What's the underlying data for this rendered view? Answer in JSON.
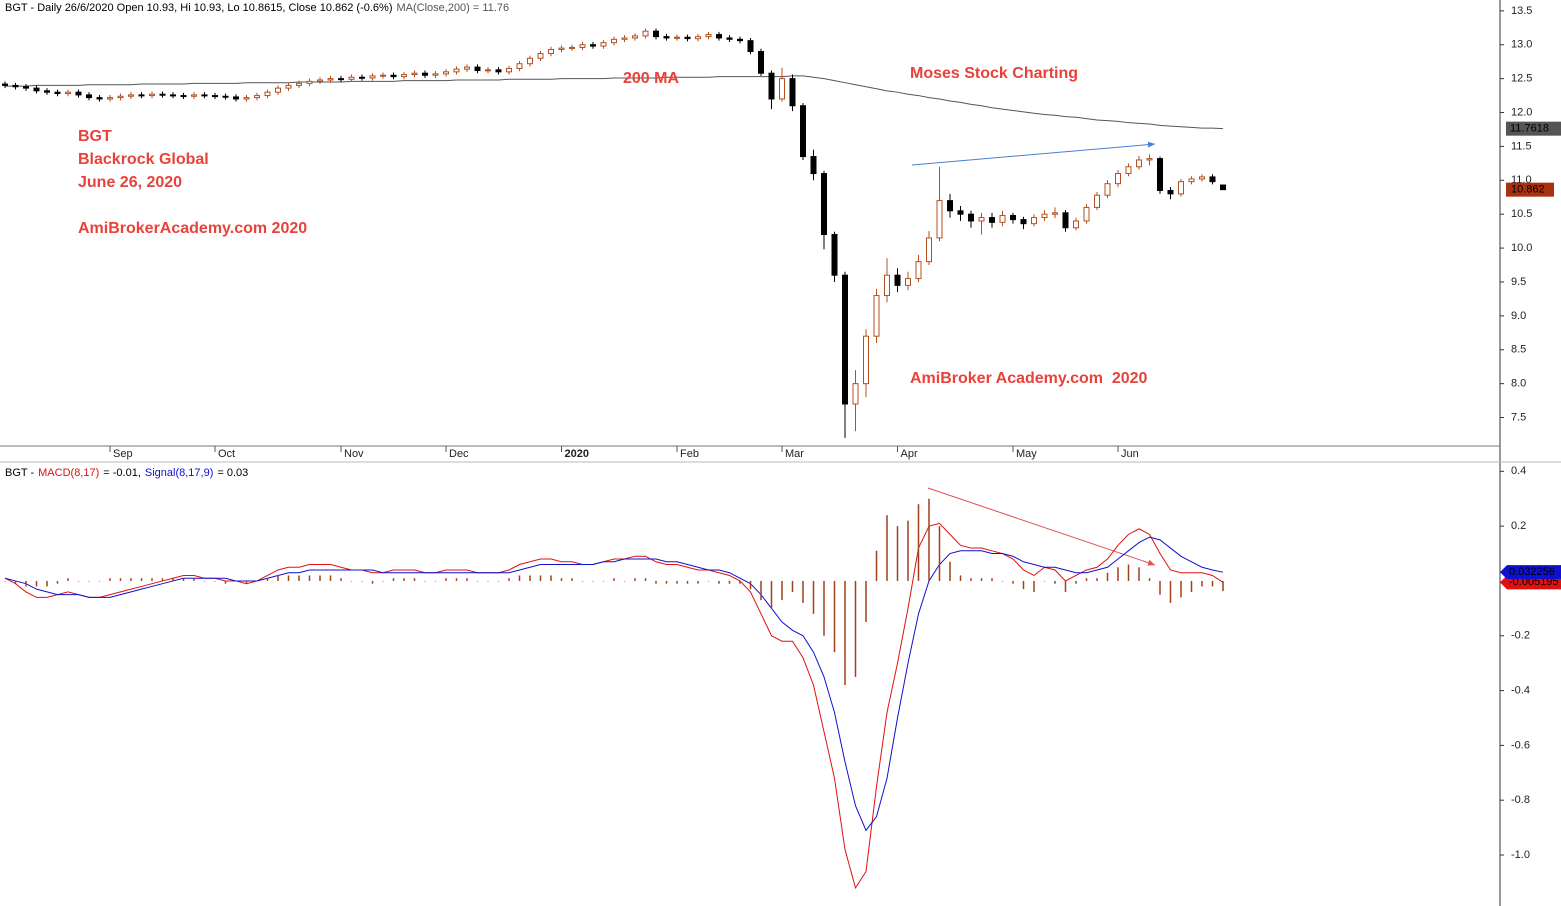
{
  "chart_data": [
    {
      "type": "candlestick",
      "title": "BGT - Daily 26/6/2020 Open 10.93, Hi 10.93, Lo 10.8615, Close 10.862 (-0.6%)",
      "annotations": [
        "BGT",
        "Blackrock Global",
        "June 26, 2020",
        "AmiBrokerAcademy.com 2020",
        "200 MA",
        "Moses Stock Charting",
        "AmiBroker Academy.com  2020"
      ],
      "categories": [
        null,
        null,
        null,
        null,
        null,
        null,
        null,
        null,
        null,
        null,
        "Sep",
        null,
        null,
        null,
        null,
        null,
        null,
        null,
        null,
        null,
        "Oct",
        null,
        null,
        null,
        null,
        null,
        null,
        null,
        null,
        null,
        null,
        null,
        "Nov",
        null,
        null,
        null,
        null,
        null,
        null,
        null,
        null,
        null,
        "Dec",
        null,
        null,
        null,
        null,
        null,
        null,
        null,
        null,
        null,
        null,
        "2020",
        null,
        null,
        null,
        null,
        null,
        null,
        null,
        null,
        null,
        null,
        "Feb",
        null,
        null,
        null,
        null,
        null,
        null,
        null,
        null,
        null,
        "Mar",
        null,
        null,
        null,
        null,
        null,
        null,
        null,
        null,
        null,
        null,
        "Apr",
        null,
        null,
        null,
        null,
        null,
        null,
        null,
        null,
        null,
        null,
        "May",
        null,
        null,
        null,
        null,
        null,
        null,
        null,
        null,
        null,
        "Jun",
        null,
        null,
        null,
        null,
        null,
        null,
        null,
        null,
        null,
        null
      ],
      "open": [
        12.42,
        12.4,
        12.38,
        12.36,
        12.32,
        12.3,
        12.28,
        12.3,
        12.26,
        12.22,
        12.2,
        12.22,
        12.24,
        12.26,
        12.25,
        12.27,
        12.26,
        12.25,
        12.24,
        12.26,
        12.25,
        12.24,
        12.23,
        12.2,
        12.22,
        12.25,
        12.3,
        12.36,
        12.4,
        12.43,
        12.46,
        12.48,
        12.5,
        12.49,
        12.52,
        12.51,
        12.54,
        12.55,
        12.53,
        12.56,
        12.58,
        12.55,
        12.57,
        12.6,
        12.64,
        12.67,
        12.62,
        12.63,
        12.6,
        12.65,
        12.72,
        12.8,
        12.87,
        12.93,
        12.95,
        12.96,
        13.0,
        12.98,
        13.03,
        13.08,
        13.1,
        13.13,
        13.2,
        13.12,
        13.1,
        13.11,
        13.09,
        13.12,
        13.15,
        13.1,
        13.08,
        13.06,
        12.9,
        12.58,
        12.2,
        12.5,
        12.1,
        11.35,
        11.1,
        10.2,
        9.6,
        7.7,
        8.0,
        8.7,
        9.3,
        9.6,
        9.45,
        9.55,
        9.8,
        10.15,
        10.7,
        10.55,
        10.5,
        10.4,
        10.45,
        10.38,
        10.48,
        10.42,
        10.36,
        10.45,
        10.5,
        10.52,
        10.3,
        10.4,
        10.6,
        10.78,
        10.95,
        11.1,
        11.2,
        11.3,
        11.32,
        10.85,
        10.8,
        10.98,
        11.02,
        11.05,
        10.93
      ],
      "high": [
        12.46,
        12.44,
        12.42,
        12.4,
        12.36,
        12.34,
        12.34,
        12.34,
        12.3,
        12.26,
        12.26,
        12.28,
        12.3,
        12.3,
        12.31,
        12.31,
        12.3,
        12.29,
        12.3,
        12.3,
        12.29,
        12.28,
        12.27,
        12.26,
        12.29,
        12.34,
        12.4,
        12.44,
        12.47,
        12.5,
        12.52,
        12.54,
        12.54,
        12.56,
        12.56,
        12.58,
        12.59,
        12.59,
        12.6,
        12.62,
        12.62,
        12.61,
        12.64,
        12.68,
        12.71,
        12.71,
        12.67,
        12.67,
        12.69,
        12.76,
        12.84,
        12.91,
        12.97,
        12.99,
        13.0,
        13.04,
        13.04,
        13.07,
        13.12,
        13.14,
        13.17,
        13.24,
        13.24,
        13.16,
        13.15,
        13.15,
        13.16,
        13.19,
        13.19,
        13.14,
        13.12,
        13.1,
        12.94,
        12.62,
        12.66,
        12.56,
        12.14,
        11.45,
        11.14,
        10.24,
        9.65,
        8.2,
        8.8,
        9.4,
        9.85,
        9.7,
        9.65,
        9.9,
        10.25,
        11.2,
        10.8,
        10.62,
        10.55,
        10.52,
        10.52,
        10.55,
        10.52,
        10.46,
        10.5,
        10.56,
        10.6,
        10.56,
        10.45,
        10.65,
        10.83,
        11.0,
        11.15,
        11.25,
        11.36,
        11.38,
        11.35,
        10.9,
        11.02,
        11.06,
        11.09,
        11.09,
        10.93
      ],
      "low": [
        12.36,
        12.34,
        12.32,
        12.28,
        12.26,
        12.24,
        12.24,
        12.22,
        12.18,
        12.16,
        12.16,
        12.18,
        12.2,
        12.21,
        12.21,
        12.22,
        12.21,
        12.2,
        12.2,
        12.21,
        12.2,
        12.19,
        12.16,
        12.16,
        12.18,
        12.21,
        12.26,
        12.32,
        12.36,
        12.39,
        12.42,
        12.44,
        12.45,
        12.45,
        12.47,
        12.47,
        12.5,
        12.49,
        12.49,
        12.52,
        12.51,
        12.51,
        12.53,
        12.56,
        12.6,
        12.58,
        12.58,
        12.56,
        12.56,
        12.61,
        12.68,
        12.76,
        12.83,
        12.89,
        12.91,
        12.92,
        12.94,
        12.94,
        12.99,
        13.04,
        13.06,
        13.09,
        13.08,
        13.06,
        13.06,
        13.05,
        13.05,
        13.08,
        13.06,
        13.04,
        13.02,
        12.86,
        12.54,
        12.05,
        12.16,
        12.02,
        11.3,
        11.0,
        9.98,
        9.5,
        7.2,
        7.3,
        7.8,
        8.6,
        9.2,
        9.35,
        9.38,
        9.5,
        9.75,
        10.1,
        10.45,
        10.4,
        10.3,
        10.2,
        10.3,
        10.32,
        10.36,
        10.28,
        10.32,
        10.4,
        10.44,
        10.24,
        10.26,
        10.36,
        10.56,
        10.74,
        10.9,
        11.06,
        11.16,
        11.22,
        10.8,
        10.72,
        10.76,
        10.94,
        10.98,
        10.94,
        10.8615
      ],
      "close": [
        12.4,
        12.38,
        12.36,
        12.32,
        12.3,
        12.28,
        12.3,
        12.26,
        12.22,
        12.2,
        12.22,
        12.24,
        12.26,
        12.25,
        12.27,
        12.26,
        12.25,
        12.24,
        12.26,
        12.25,
        12.24,
        12.23,
        12.2,
        12.22,
        12.25,
        12.3,
        12.36,
        12.4,
        12.43,
        12.46,
        12.48,
        12.5,
        12.49,
        12.52,
        12.51,
        12.54,
        12.55,
        12.53,
        12.56,
        12.58,
        12.55,
        12.57,
        12.6,
        12.64,
        12.67,
        12.62,
        12.63,
        12.6,
        12.65,
        12.72,
        12.8,
        12.87,
        12.93,
        12.95,
        12.96,
        13.0,
        12.98,
        13.03,
        13.08,
        13.1,
        13.13,
        13.2,
        13.12,
        13.1,
        13.11,
        13.09,
        13.12,
        13.15,
        13.1,
        13.08,
        13.06,
        12.9,
        12.58,
        12.2,
        12.5,
        12.1,
        11.35,
        11.1,
        10.2,
        9.6,
        7.7,
        8.0,
        8.7,
        9.3,
        9.6,
        9.45,
        9.55,
        9.8,
        10.15,
        10.7,
        10.55,
        10.5,
        10.4,
        10.45,
        10.38,
        10.48,
        10.42,
        10.36,
        10.45,
        10.5,
        10.52,
        10.3,
        10.4,
        10.6,
        10.78,
        10.95,
        11.1,
        11.2,
        11.3,
        11.32,
        10.85,
        10.8,
        10.98,
        11.02,
        11.05,
        10.98,
        10.862
      ],
      "up_color": "#b4501e",
      "down_color": "#000000",
      "close_label": "10.862",
      "close_label_color": "#a8320f",
      "series": [
        {
          "name": "MA(Close,200) = 11.76",
          "color": "#555555",
          "last_label": "11.7618",
          "values": [
            12.39,
            12.39,
            12.39,
            12.4,
            12.4,
            12.4,
            12.4,
            12.4,
            12.41,
            12.41,
            12.41,
            12.41,
            12.41,
            12.42,
            12.42,
            12.42,
            12.42,
            12.42,
            12.43,
            12.43,
            12.43,
            12.43,
            12.43,
            12.44,
            12.44,
            12.44,
            12.44,
            12.44,
            12.45,
            12.45,
            12.45,
            12.45,
            12.45,
            12.46,
            12.46,
            12.46,
            12.46,
            12.46,
            12.47,
            12.47,
            12.47,
            12.47,
            12.47,
            12.48,
            12.48,
            12.48,
            12.48,
            12.48,
            12.49,
            12.49,
            12.49,
            12.49,
            12.49,
            12.5,
            12.5,
            12.5,
            12.5,
            12.5,
            12.51,
            12.51,
            12.51,
            12.51,
            12.51,
            12.52,
            12.52,
            12.52,
            12.52,
            12.52,
            12.53,
            12.53,
            12.53,
            12.53,
            12.53,
            12.53,
            12.53,
            12.54,
            12.54,
            12.52,
            12.5,
            12.47,
            12.44,
            12.41,
            12.38,
            12.35,
            12.32,
            12.3,
            12.27,
            12.25,
            12.22,
            12.2,
            12.17,
            12.15,
            12.12,
            12.1,
            12.07,
            12.05,
            12.03,
            12.01,
            11.99,
            11.97,
            11.96,
            11.94,
            11.93,
            11.91,
            11.89,
            11.88,
            11.87,
            11.85,
            11.84,
            11.83,
            11.81,
            11.8,
            11.79,
            11.78,
            11.77,
            11.77,
            11.7618
          ]
        }
      ],
      "ylim": [
        7.08,
        13.66
      ],
      "yticks": [
        7.5,
        8.0,
        8.5,
        9.0,
        9.5,
        10.0,
        10.5,
        11.0,
        11.5,
        12.0,
        12.5,
        13.0,
        13.5
      ],
      "ytick_labels": [
        "7.5",
        "8.0",
        "8.5",
        "9.0",
        "9.5",
        "10.0",
        "10.5",
        "11.0",
        "11.5",
        "12.0",
        "12.5",
        "13.0",
        "13.5"
      ]
    },
    {
      "type": "macd",
      "prefix": "BGT -",
      "series": [
        {
          "name": "MACD(8,17)",
          "legend_value": "= -0.01,",
          "color": "#e01010",
          "last_label": "-0.005195",
          "values": [
            0.01,
            -0.01,
            -0.04,
            -0.06,
            -0.06,
            -0.05,
            -0.04,
            -0.05,
            -0.06,
            -0.06,
            -0.05,
            -0.04,
            -0.03,
            -0.02,
            -0.01,
            0,
            0.01,
            0.02,
            0.02,
            0.01,
            0.01,
            0,
            0,
            -0.01,
            0,
            0.02,
            0.04,
            0.05,
            0.05,
            0.06,
            0.06,
            0.06,
            0.05,
            0.04,
            0.04,
            0.03,
            0.03,
            0.04,
            0.04,
            0.04,
            0.03,
            0.03,
            0.04,
            0.04,
            0.04,
            0.03,
            0.03,
            0.03,
            0.04,
            0.06,
            0.07,
            0.08,
            0.08,
            0.07,
            0.07,
            0.06,
            0.06,
            0.07,
            0.08,
            0.08,
            0.09,
            0.09,
            0.07,
            0.06,
            0.06,
            0.05,
            0.04,
            0.04,
            0.03,
            0.02,
            0,
            -0.04,
            -0.12,
            -0.2,
            -0.22,
            -0.22,
            -0.28,
            -0.38,
            -0.55,
            -0.72,
            -0.98,
            -1.12,
            -1.06,
            -0.75,
            -0.48,
            -0.3,
            -0.1,
            0.12,
            0.2,
            0.21,
            0.17,
            0.13,
            0.12,
            0.12,
            0.11,
            0.1,
            0.08,
            0.04,
            0.02,
            0.05,
            0.04,
            0,
            0.02,
            0.04,
            0.05,
            0.08,
            0.13,
            0.17,
            0.19,
            0.17,
            0.1,
            0.04,
            0.03,
            0.03,
            0.03,
            0.02,
            -0.005
          ]
        },
        {
          "name": "Signal(8,17,9)",
          "legend_value": "= 0.03",
          "color": "#1010d0",
          "last_label": "0.032256",
          "values": [
            0.01,
            0,
            -0.01,
            -0.03,
            -0.04,
            -0.05,
            -0.05,
            -0.05,
            -0.06,
            -0.06,
            -0.06,
            -0.05,
            -0.04,
            -0.03,
            -0.02,
            -0.01,
            0,
            0.01,
            0.01,
            0.01,
            0.01,
            0.01,
            0,
            0,
            0,
            0.01,
            0.02,
            0.03,
            0.03,
            0.04,
            0.04,
            0.04,
            0.04,
            0.04,
            0.04,
            0.04,
            0.03,
            0.03,
            0.03,
            0.03,
            0.03,
            0.03,
            0.03,
            0.03,
            0.03,
            0.03,
            0.03,
            0.03,
            0.03,
            0.04,
            0.05,
            0.06,
            0.06,
            0.06,
            0.06,
            0.06,
            0.06,
            0.07,
            0.07,
            0.08,
            0.08,
            0.08,
            0.08,
            0.07,
            0.07,
            0.06,
            0.05,
            0.04,
            0.04,
            0.03,
            0.01,
            -0.01,
            -0.05,
            -0.1,
            -0.15,
            -0.18,
            -0.2,
            -0.26,
            -0.35,
            -0.48,
            -0.66,
            -0.82,
            -0.91,
            -0.86,
            -0.72,
            -0.5,
            -0.3,
            -0.12,
            0,
            0.06,
            0.1,
            0.11,
            0.11,
            0.11,
            0.1,
            0.1,
            0.09,
            0.07,
            0.06,
            0.05,
            0.05,
            0.04,
            0.03,
            0.03,
            0.04,
            0.05,
            0.08,
            0.11,
            0.14,
            0.16,
            0.15,
            0.12,
            0.09,
            0.07,
            0.05,
            0.04,
            0.032
          ]
        },
        {
          "color": "#a0401a",
          "kind": "histogram",
          "values": [
            0,
            -0.01,
            -0.02,
            -0.02,
            -0.02,
            -0.01,
            0.01,
            0,
            0,
            0,
            0.01,
            0.01,
            0.01,
            0.01,
            0.01,
            0.01,
            0.01,
            0.01,
            0.01,
            0,
            0,
            -0.01,
            0,
            -0.01,
            0,
            0.01,
            0.02,
            0.02,
            0.02,
            0.02,
            0.02,
            0.02,
            0.01,
            0,
            0,
            -0.01,
            0,
            0.01,
            0.01,
            0.01,
            0,
            0,
            0.01,
            0.01,
            0.01,
            0,
            0,
            0,
            0.01,
            0.02,
            0.02,
            0.02,
            0.02,
            0.01,
            0.01,
            0,
            0,
            0,
            0.01,
            0,
            0.01,
            0.01,
            -0.01,
            -0.01,
            -0.01,
            -0.01,
            -0.01,
            0,
            -0.01,
            -0.01,
            -0.01,
            -0.03,
            -0.07,
            -0.1,
            -0.07,
            -0.04,
            -0.08,
            -0.12,
            -0.2,
            -0.26,
            -0.38,
            -0.35,
            -0.15,
            0.11,
            0.24,
            0.2,
            0.22,
            0.28,
            0.3,
            0.2,
            0.07,
            0.02,
            0.01,
            0.01,
            0.01,
            0,
            -0.01,
            -0.03,
            -0.04,
            0,
            -0.01,
            -0.04,
            -0.01,
            0.01,
            0.01,
            0.03,
            0.05,
            0.06,
            0.05,
            0.01,
            -0.05,
            -0.08,
            -0.06,
            -0.04,
            -0.02,
            -0.02,
            -0.037
          ]
        }
      ],
      "ylim": [
        -1.186,
        0.434
      ],
      "yticks": [
        0.4,
        0.2,
        -0.2,
        -0.4,
        -0.6,
        -0.8,
        {
          "value": -1,
          "label": "-1.0"
        }
      ]
    }
  ]
}
